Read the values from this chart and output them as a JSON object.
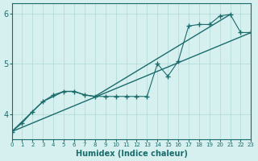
{
  "xlabel": "Humidex (Indice chaleur)",
  "xlim": [
    0,
    23
  ],
  "ylim": [
    3.5,
    6.2
  ],
  "yticks": [
    4,
    5,
    6
  ],
  "xticks": [
    0,
    1,
    2,
    3,
    4,
    5,
    6,
    7,
    8,
    9,
    10,
    11,
    12,
    13,
    14,
    15,
    16,
    17,
    18,
    19,
    20,
    21,
    22,
    23
  ],
  "background_color": "#d6f0ef",
  "grid_color": "#b0d8d5",
  "line_color": "#1a6b6b",
  "line1_x": [
    0,
    1,
    2,
    3,
    4,
    5,
    6,
    7,
    8,
    9,
    10,
    11,
    12,
    13,
    14,
    15,
    16,
    17,
    18,
    19,
    20,
    21,
    22,
    23
  ],
  "line1_y": [
    3.65,
    3.82,
    4.05,
    4.25,
    4.38,
    4.45,
    4.45,
    4.38,
    4.35,
    4.35,
    4.35,
    4.35,
    4.35,
    4.35,
    5.0,
    4.75,
    5.05,
    5.75,
    5.78,
    5.78,
    5.95,
    5.98,
    5.62,
    5.62
  ],
  "line2_x": [
    0,
    2,
    3,
    5,
    6,
    7,
    8,
    21
  ],
  "line2_y": [
    3.65,
    4.05,
    4.25,
    4.45,
    4.45,
    4.38,
    4.35,
    5.98
  ],
  "line3_x": [
    0,
    23
  ],
  "line3_y": [
    3.65,
    5.62
  ]
}
